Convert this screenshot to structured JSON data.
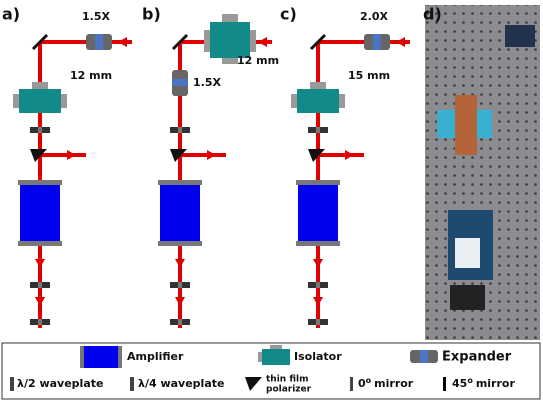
{
  "panels": [
    {
      "label": "a)",
      "expander": "1.5X",
      "isolator": "12 mm"
    },
    {
      "label": "b)",
      "expander": "1.5X",
      "isolator": "12 mm"
    },
    {
      "label": "c)",
      "expander": "2.0X",
      "isolator": "15 mm"
    },
    {
      "label": "d)"
    }
  ],
  "legend": {
    "amplifier": "Amplifier",
    "isolator": "Isolator",
    "expander": "Expander",
    "half_waveplate": "λ/2 waveplate",
    "quarter_waveplate": "λ/4 waveplate",
    "polarizer": [
      "thin film",
      "polarizer"
    ],
    "zero_mirror": {
      "angle": "0",
      "degree": "o",
      "text": "mirror"
    },
    "angled_mirror": {
      "angle": "45",
      "degree": "o",
      "text": "mirror"
    }
  }
}
